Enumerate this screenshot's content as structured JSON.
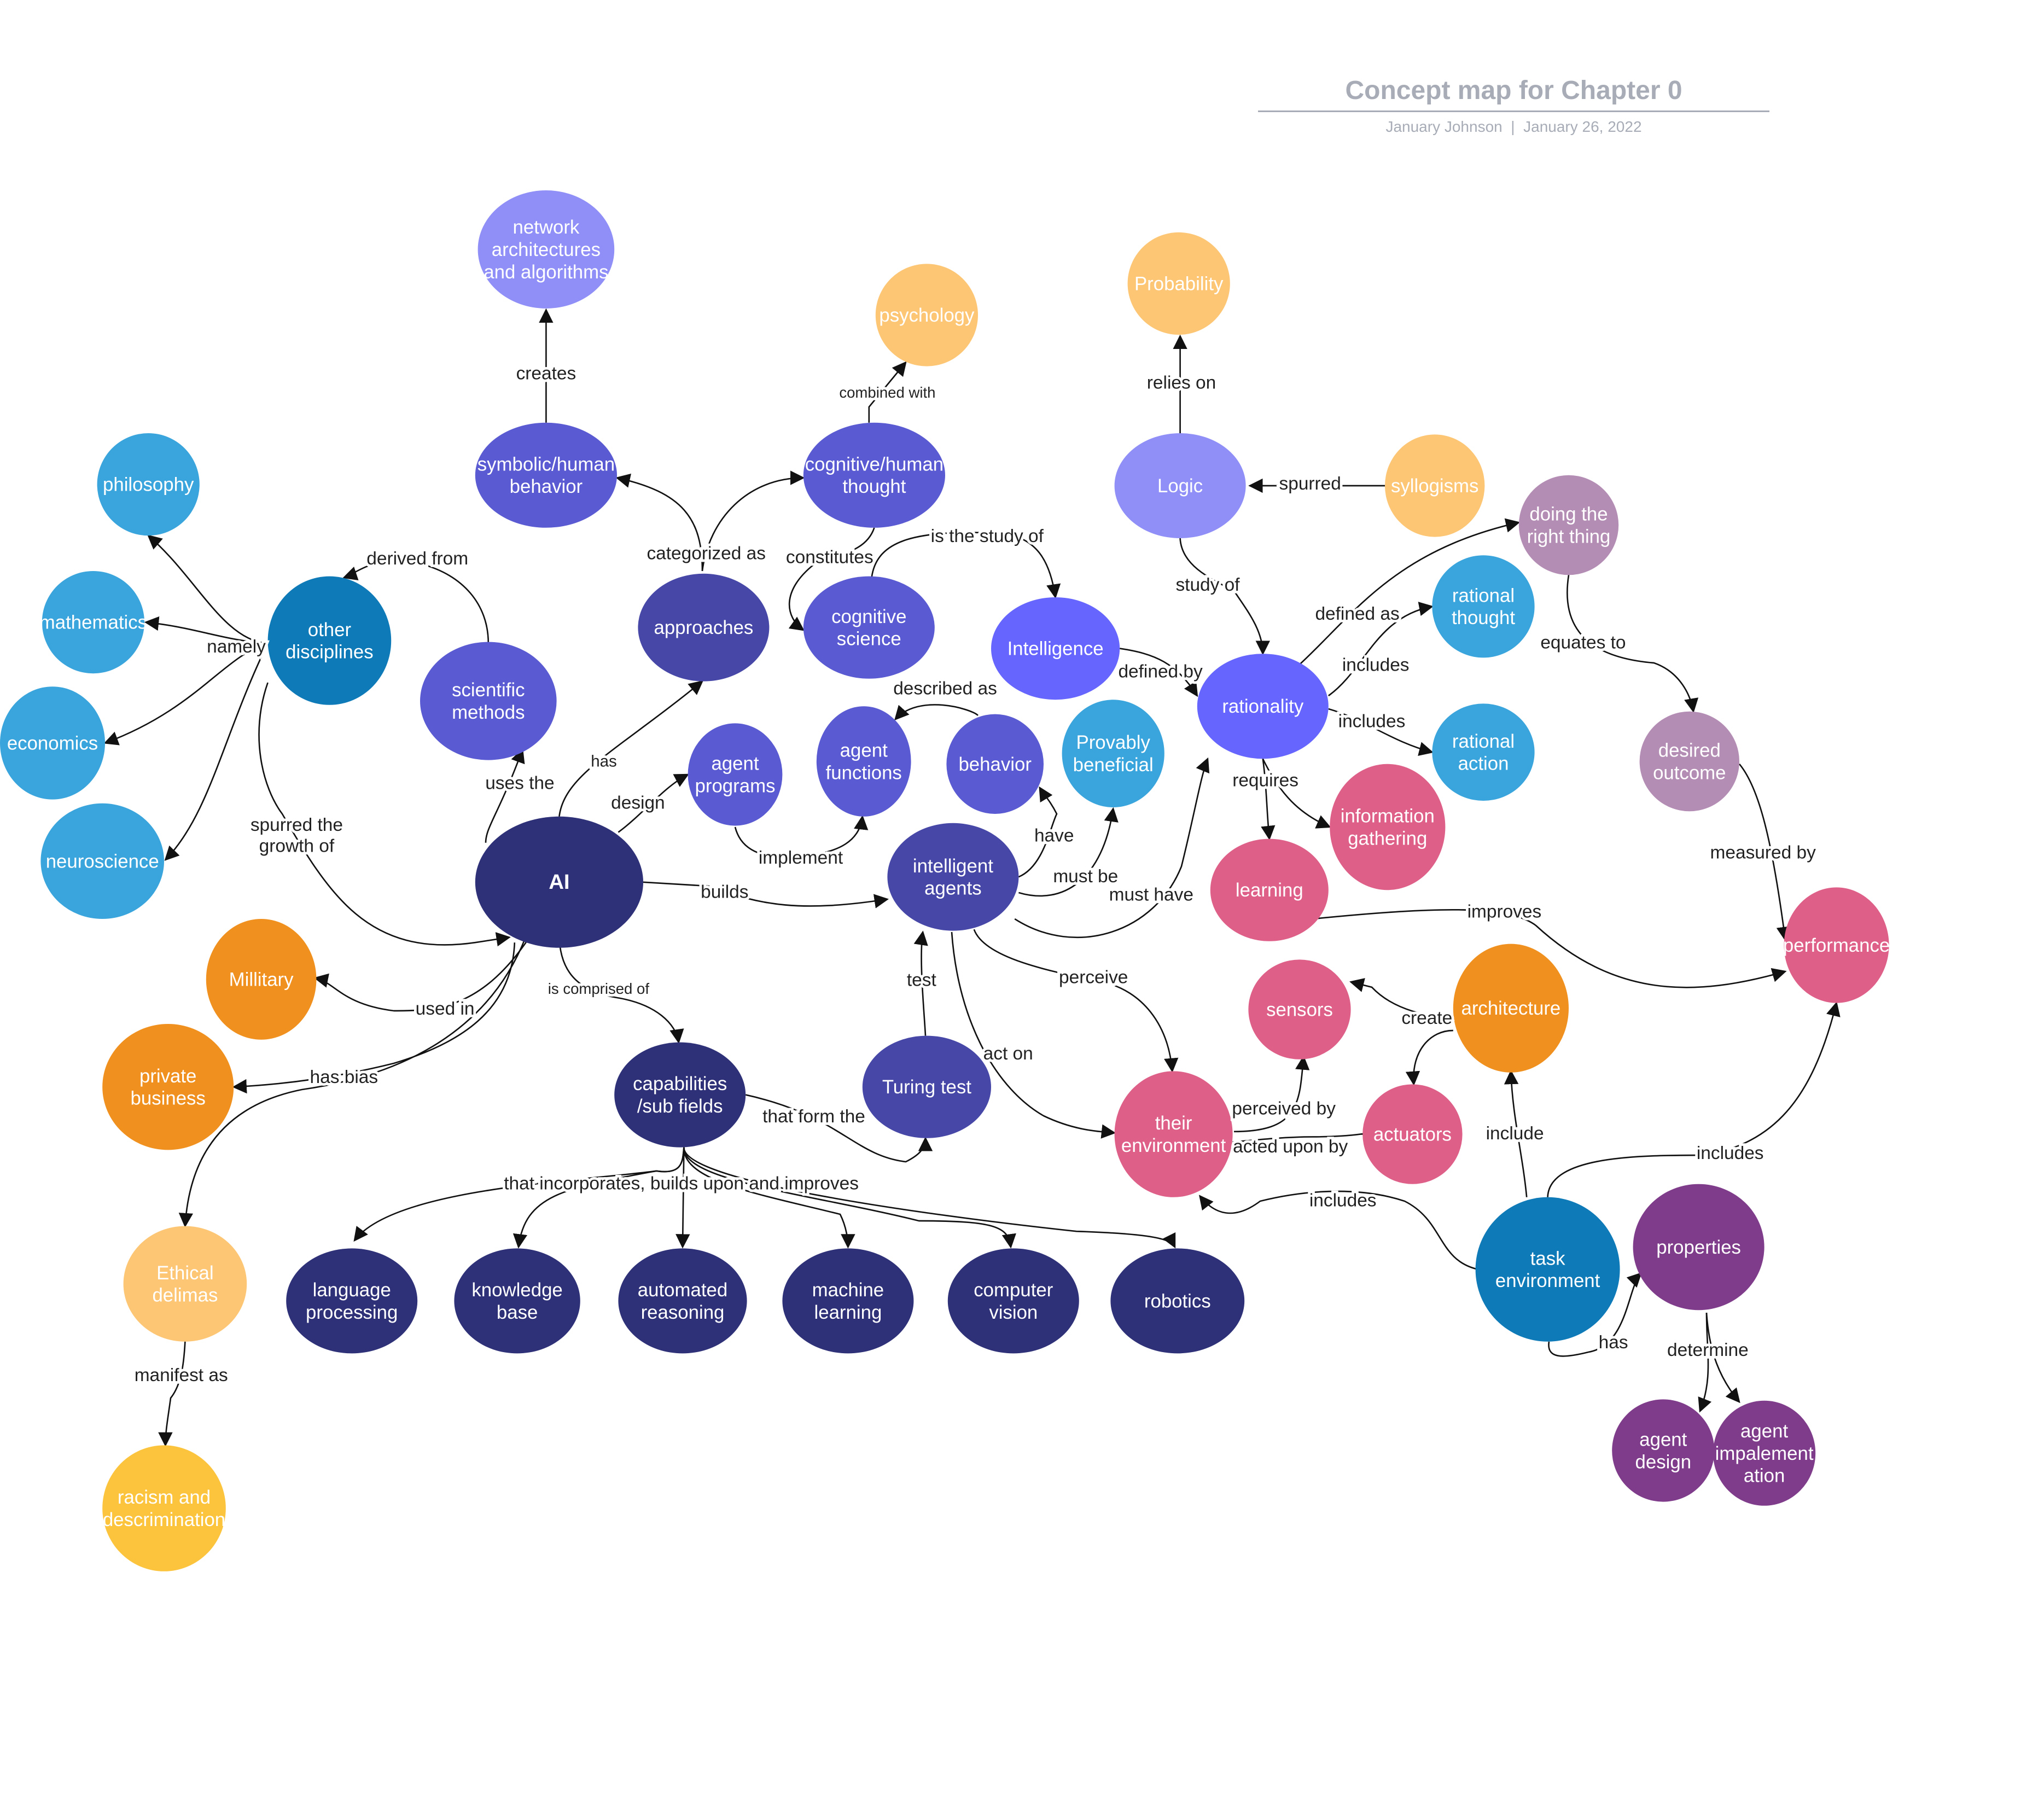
{
  "header": {
    "title": "Concept map for Chapter 0",
    "author": "January Johnson",
    "separator": "|",
    "date": "January 26, 2022"
  },
  "colors": {
    "navy": "#2e3178",
    "indigo": "#4747a8",
    "violet": "#5a5ad2",
    "periwinkle": "#8f8ff7",
    "blue_bright": "#6666ff",
    "sky": "#3aa5dc",
    "ocean": "#0e7ab8",
    "orange": "#f0901e",
    "peach": "#fdc674",
    "yellow": "#fbc43c",
    "pink": "#de5f88",
    "mauve": "#b48db4",
    "plum": "#7e3c8a",
    "edge": "#111111"
  },
  "nodes": [
    {
      "id": "ai",
      "label": "AI",
      "color": "navy",
      "bold": true
    },
    {
      "id": "network",
      "label": "network architectures and algorithms",
      "color": "periwinkle"
    },
    {
      "id": "symbolic",
      "label": "symbolic/human behavior",
      "color": "violet"
    },
    {
      "id": "cogthought",
      "label": "cognitive/human thought",
      "color": "violet"
    },
    {
      "id": "psychology",
      "label": "psychology",
      "color": "peach"
    },
    {
      "id": "philosophy",
      "label": "philosophy",
      "color": "sky"
    },
    {
      "id": "mathematics",
      "label": "mathematics",
      "color": "sky"
    },
    {
      "id": "economics",
      "label": "economics",
      "color": "sky"
    },
    {
      "id": "neuroscience",
      "label": "neuroscience",
      "color": "sky"
    },
    {
      "id": "otherdisc",
      "label": "other disciplines",
      "color": "ocean"
    },
    {
      "id": "scimethods",
      "label": "scientific methods",
      "color": "violet"
    },
    {
      "id": "approaches",
      "label": "approaches",
      "color": "indigo"
    },
    {
      "id": "cogscience",
      "label": "cognitive science",
      "color": "violet"
    },
    {
      "id": "intelligence",
      "label": "Intelligence",
      "color": "blue_bright"
    },
    {
      "id": "agentprograms",
      "label": "agent programs",
      "color": "violet"
    },
    {
      "id": "agentfunctions",
      "label": "agent functions",
      "color": "violet"
    },
    {
      "id": "behavior",
      "label": "behavior",
      "color": "violet"
    },
    {
      "id": "provably",
      "label": "Provably beneficial",
      "color": "sky"
    },
    {
      "id": "intagents",
      "label": "intelligent agents",
      "color": "indigo"
    },
    {
      "id": "probability",
      "label": "Probability",
      "color": "peach"
    },
    {
      "id": "logic",
      "label": "Logic",
      "color": "periwinkle"
    },
    {
      "id": "syllogisms",
      "label": "syllogisms",
      "color": "peach"
    },
    {
      "id": "doingright",
      "label": "doing the right thing",
      "color": "mauve"
    },
    {
      "id": "ratthought",
      "label": "rational thought",
      "color": "sky"
    },
    {
      "id": "rationality",
      "label": "rationality",
      "color": "blue_bright"
    },
    {
      "id": "rataction",
      "label": "rational action",
      "color": "sky"
    },
    {
      "id": "desired",
      "label": "desired outcome",
      "color": "mauve"
    },
    {
      "id": "infogathering",
      "label": "information gathering",
      "color": "pink"
    },
    {
      "id": "learning",
      "label": "learning",
      "color": "pink"
    },
    {
      "id": "performance",
      "label": "performance",
      "color": "pink"
    },
    {
      "id": "military",
      "label": "Millitary",
      "color": "orange"
    },
    {
      "id": "private",
      "label": "private business",
      "color": "orange"
    },
    {
      "id": "ethical",
      "label": "Ethical delimas",
      "color": "peach"
    },
    {
      "id": "racism",
      "label": "racism and descrimination",
      "color": "yellow"
    },
    {
      "id": "capabilities",
      "label": "capabilities /sub fields",
      "color": "navy"
    },
    {
      "id": "turing",
      "label": "Turing test",
      "color": "indigo"
    },
    {
      "id": "environment",
      "label": "their environment",
      "color": "pink"
    },
    {
      "id": "sensors",
      "label": "sensors",
      "color": "pink"
    },
    {
      "id": "architecture",
      "label": "architecture",
      "color": "orange"
    },
    {
      "id": "actuators",
      "label": "actuators",
      "color": "pink"
    },
    {
      "id": "langproc",
      "label": "language processing",
      "color": "navy"
    },
    {
      "id": "knowledge",
      "label": "knowledge base",
      "color": "navy"
    },
    {
      "id": "autoreason",
      "label": "automated reasoning",
      "color": "navy"
    },
    {
      "id": "ml",
      "label": "machine learning",
      "color": "navy"
    },
    {
      "id": "cv",
      "label": "computer vision",
      "color": "navy"
    },
    {
      "id": "robotics",
      "label": "robotics",
      "color": "navy"
    },
    {
      "id": "taskenv",
      "label": "task environment",
      "color": "ocean"
    },
    {
      "id": "properties",
      "label": "properties",
      "color": "plum"
    },
    {
      "id": "agentdesign",
      "label": "agent design",
      "color": "plum"
    },
    {
      "id": "agentimpl",
      "label": "agent impalement ation",
      "color": "plum"
    }
  ],
  "edge_labels": [
    {
      "id": "creates",
      "text": "creates"
    },
    {
      "id": "combined",
      "text": "combined with"
    },
    {
      "id": "relies",
      "text": "relies on"
    },
    {
      "id": "spurred",
      "text": "spurred"
    },
    {
      "id": "derived",
      "text": "derived from"
    },
    {
      "id": "categorized",
      "text": "categorized as"
    },
    {
      "id": "constitutes",
      "text": "constitutes"
    },
    {
      "id": "studyof",
      "text": "is the study of"
    },
    {
      "id": "studyoflogic",
      "text": "study of"
    },
    {
      "id": "namely",
      "text": "namely"
    },
    {
      "id": "definedas",
      "text": "defined as"
    },
    {
      "id": "equates",
      "text": "equates to"
    },
    {
      "id": "includes1",
      "text": "includes"
    },
    {
      "id": "includes2",
      "text": "includes"
    },
    {
      "id": "definedby",
      "text": "defined by"
    },
    {
      "id": "described",
      "text": "described as"
    },
    {
      "id": "has",
      "text": "has"
    },
    {
      "id": "design",
      "text": "design"
    },
    {
      "id": "usesthe",
      "text": "uses the"
    },
    {
      "id": "requires",
      "text": "requires"
    },
    {
      "id": "measured",
      "text": "measured by"
    },
    {
      "id": "spurredgrowth",
      "text": "spurred the growth of"
    },
    {
      "id": "implement",
      "text": "implement"
    },
    {
      "id": "have",
      "text": "have"
    },
    {
      "id": "mustbe",
      "text": "must be"
    },
    {
      "id": "musthave",
      "text": "must have"
    },
    {
      "id": "builds",
      "text": "builds"
    },
    {
      "id": "improves",
      "text": "improves"
    },
    {
      "id": "comprised",
      "text": "is comprised of"
    },
    {
      "id": "test",
      "text": "test"
    },
    {
      "id": "perceive",
      "text": "perceive"
    },
    {
      "id": "usedin",
      "text": "used in"
    },
    {
      "id": "create",
      "text": "create"
    },
    {
      "id": "actonl",
      "text": "act on"
    },
    {
      "id": "hasbias",
      "text": "has bias"
    },
    {
      "id": "perceivedby",
      "text": "perceived by"
    },
    {
      "id": "formthe",
      "text": "that form the"
    },
    {
      "id": "include",
      "text": "include"
    },
    {
      "id": "actedupon",
      "text": "acted upon by"
    },
    {
      "id": "includes3",
      "text": "includes"
    },
    {
      "id": "incorporates",
      "text": "that incorporates, builds upon and improves"
    },
    {
      "id": "includes4",
      "text": "includes"
    },
    {
      "id": "manifest",
      "text": "manifest as"
    },
    {
      "id": "hasprops",
      "text": "has"
    },
    {
      "id": "determine",
      "text": "determine"
    }
  ]
}
